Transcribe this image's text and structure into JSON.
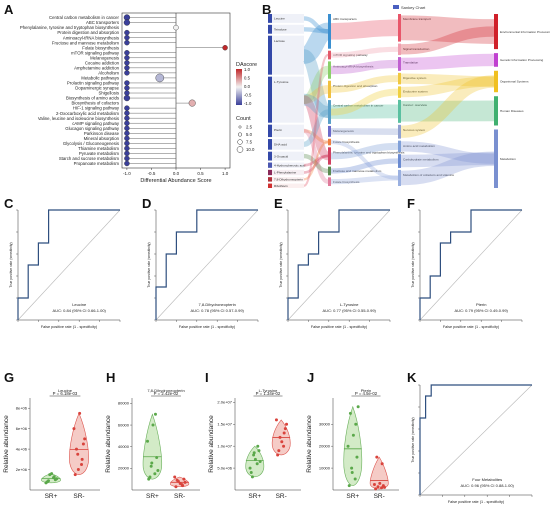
{
  "panels": {
    "letters": [
      "A",
      "B",
      "C",
      "D",
      "E",
      "F",
      "G",
      "H",
      "I",
      "J",
      "K"
    ]
  },
  "panel_A": {
    "pathways": [
      "Central carbon metabolism in cancer",
      "ABC transporters",
      "Phenylalanine, tyrosine and tryptophan biosynthesis",
      "Protein digestion and absorption",
      "Aminoacyl-tRNA biosynthesis",
      "Fructose and mannose metabolism",
      "Folate biosynthesis",
      "mTOR signaling pathway",
      "Melanogenesis",
      "Cocaine addiction",
      "Amphetamine addiction",
      "Alcoholism",
      "Metabolic pathways",
      "Prolactin signaling pathway",
      "Dopaminergic synapse",
      "Shigellosis",
      "Biosynthesis of amino acids",
      "Biosynthesis of cofactors",
      "HIF-1 signaling pathway",
      "2-Oxocarboxylic acid metabolism",
      "Valine, leucine and isoleucine biosynthesis",
      "cAMP signaling pathway",
      "Glucagon signaling pathway",
      "Parkinson disease",
      "Mineral absorption",
      "Glycolysis / Gluconeogenesis",
      "Thiamine metabolism",
      "Pyruvate metabolism",
      "Starch and sucrose metabolism",
      "Propanoate metabolism"
    ],
    "x_ticks": [
      "-1.0",
      "-0.5",
      "0.0",
      "0.5",
      "1.0"
    ],
    "xlabel": "Differential Abundance Score",
    "legend_da_title": "DAscore",
    "legend_da_ticks": [
      "1.0",
      "0.5",
      "0.0",
      "-0.5",
      "-1.0"
    ],
    "legend_count_title": "Count",
    "legend_count_labels": [
      "2.5",
      "5.0",
      "7.5",
      "10.0"
    ]
  },
  "chart_data": [
    {
      "type": "scatter",
      "panel": "A",
      "xlabel": "Differential Abundance Score",
      "xlim": [
        -1.1,
        1.1
      ],
      "categories": [
        "Central carbon metabolism in cancer",
        "ABC transporters",
        "Phenylalanine, tyrosine and tryptophan biosynthesis",
        "Protein digestion and absorption",
        "Aminoacyl-tRNA biosynthesis",
        "Fructose and mannose metabolism",
        "Folate biosynthesis",
        "mTOR signaling pathway",
        "Melanogenesis",
        "Cocaine addiction",
        "Amphetamine addiction",
        "Alcoholism",
        "Metabolic pathways",
        "Prolactin signaling pathway",
        "Dopaminergic synapse",
        "Shigellosis",
        "Biosynthesis of amino acids",
        "Biosynthesis of cofactors",
        "HIF-1 signaling pathway",
        "2-Oxocarboxylic acid metabolism",
        "Valine, leucine and isoleucine biosynthesis",
        "cAMP signaling pathway",
        "Glucagon signaling pathway",
        "Parkinson disease",
        "Mineral absorption",
        "Glycolysis / Gluconeogenesis",
        "Thiamine metabolism",
        "Pyruvate metabolism",
        "Starch and sucrose metabolism",
        "Propanoate metabolism"
      ],
      "values": [
        -1,
        -1,
        0,
        -1,
        -1,
        -1,
        1,
        -1,
        -1,
        -1,
        -1,
        -1,
        -0.33,
        -1,
        -1,
        -1,
        -1,
        0.33,
        -1,
        -1,
        -1,
        -1,
        -1,
        -1,
        -1,
        -1,
        -1,
        -1,
        -1,
        -1
      ],
      "counts": [
        2,
        2,
        1,
        1,
        1,
        1,
        1,
        1,
        1,
        1,
        1,
        1,
        6,
        1,
        1,
        1,
        2,
        3,
        1,
        1,
        1,
        1,
        1,
        1,
        1,
        1,
        1,
        1,
        1,
        1
      ]
    },
    {
      "type": "line",
      "panel": "C",
      "xlabel": "False positive rate (1 - specificity)",
      "ylabel": "True positive rate (sensitivity)",
      "annotation": [
        "Leucine",
        "AUC: 0.84 (95% CI 0.66-1.00)"
      ],
      "x": [
        0,
        0,
        0.1,
        0.1,
        0.2,
        0.2,
        0.3,
        0.3,
        1
      ],
      "y": [
        0,
        0.2,
        0.2,
        0.5,
        0.5,
        0.7,
        0.7,
        1,
        1
      ]
    },
    {
      "type": "line",
      "panel": "D",
      "xlabel": "False positive rate (1 - specificity)",
      "ylabel": "True positive rate (sensitivity)",
      "annotation": [
        "7,8-Dihydroneopterin",
        "AUC: 0.78 (95% CI 0.57-0.99)"
      ],
      "x": [
        0,
        0,
        0.1,
        0.1,
        0.2,
        0.2,
        0.4,
        0.4,
        1
      ],
      "y": [
        0,
        0.3,
        0.3,
        0.6,
        0.6,
        0.8,
        0.8,
        1,
        1
      ]
    },
    {
      "type": "line",
      "panel": "E",
      "xlabel": "False positive rate (1 - specificity)",
      "ylabel": "True positive rate (sensitivity)",
      "annotation": [
        "L-Tyrosine",
        "AUC: 0.77 (95% CI 0.55-0.99)"
      ],
      "x": [
        0,
        0,
        0.1,
        0.1,
        0.2,
        0.2,
        0.3,
        0.3,
        0.5,
        0.5,
        1
      ],
      "y": [
        0,
        0.2,
        0.2,
        0.5,
        0.5,
        0.6,
        0.6,
        0.8,
        0.8,
        1,
        1
      ]
    },
    {
      "type": "line",
      "panel": "F",
      "xlabel": "False positive rate (1 - specificity)",
      "ylabel": "True positive rate (sensitivity)",
      "annotation": [
        "Pterin",
        "AUC: 0.79 (95% CI 0.49-0.99)"
      ],
      "x": [
        0,
        0,
        0.1,
        0.1,
        0.2,
        0.2,
        0.3,
        0.3,
        0.5,
        0.5,
        1
      ],
      "y": [
        0,
        0.2,
        0.2,
        0.4,
        0.4,
        0.7,
        0.7,
        0.8,
        0.8,
        1,
        1
      ]
    },
    {
      "type": "line",
      "panel": "K",
      "xlabel": "False positive rate (1 - specificity)",
      "ylabel": "True positive rate (sensitivity)",
      "annotation": [
        "Four Metabolites",
        "AUC: 0.96 (95% CI 0.88-1.00)"
      ],
      "x": [
        0,
        0,
        0.05,
        0.05,
        0.1,
        0.1,
        1
      ],
      "y": [
        0,
        0.7,
        0.7,
        0.9,
        0.9,
        1,
        1
      ]
    },
    {
      "type": "scatter",
      "panel": "G",
      "title": "Leucine",
      "ylabel": "Relative abundance",
      "categories": [
        "SR+",
        "SR-"
      ],
      "pvalue": "P = 6.18e-03",
      "yticks": [
        "2e+06",
        "4e+06",
        "6e+06",
        "8e+06"
      ],
      "ylim": [
        0,
        9000000
      ],
      "series": [
        {
          "name": "SR+",
          "values": [
            800000,
            1200000,
            1500000,
            1000000,
            700000,
            1600000,
            1300000,
            900000,
            1100000
          ]
        },
        {
          "name": "SR-",
          "values": [
            1500000,
            2500000,
            3500000,
            4500000,
            6000000,
            7500000,
            3000000,
            4000000,
            5000000,
            2000000
          ]
        }
      ]
    },
    {
      "type": "scatter",
      "panel": "H",
      "title": "7,8-Dihydroneopterin",
      "ylabel": "Relative abundance",
      "categories": [
        "SR+",
        "SR-"
      ],
      "pvalue": "P = 2.42e-02",
      "yticks": [
        "20000",
        "40000",
        "60000",
        "80000"
      ],
      "ylim": [
        0,
        85000
      ],
      "series": [
        {
          "name": "SR+",
          "values": [
            10000,
            15000,
            22000,
            30000,
            45000,
            60000,
            70000,
            12000,
            18000,
            25000
          ]
        },
        {
          "name": "SR-",
          "values": [
            3000,
            5000,
            8000,
            10000,
            12000,
            6000,
            4000,
            9000,
            7000
          ]
        }
      ]
    },
    {
      "type": "scatter",
      "panel": "I",
      "title": "L-Tyrosine",
      "ylabel": "Relative abundance",
      "categories": [
        "SR+",
        "SR-"
      ],
      "pvalue": "P = 1.34e-02",
      "yticks": [
        "5.0e+06",
        "1.0e+07",
        "1.5e+07",
        "2.0e+07"
      ],
      "ylim": [
        0,
        21000000
      ],
      "series": [
        {
          "name": "SR+",
          "values": [
            4000000,
            6000000,
            8000000,
            9000000,
            5000000,
            7000000,
            10000000,
            3000000,
            6500000,
            8500000
          ]
        },
        {
          "name": "SR-",
          "values": [
            8000000,
            10000000,
            12000000,
            14000000,
            16000000,
            11000000,
            13000000,
            9000000,
            15000000
          ]
        }
      ]
    },
    {
      "type": "scatter",
      "panel": "J",
      "title": "Pterin",
      "ylabel": "Relative abundance",
      "categories": [
        "SR+",
        "SR-"
      ],
      "pvalue": "P = 4.5e-02",
      "yticks": [
        "10000",
        "20000",
        "30000"
      ],
      "ylim": [
        0,
        42000
      ],
      "series": [
        {
          "name": "SR+",
          "values": [
            2000,
            5000,
            10000,
            15000,
            20000,
            25000,
            30000,
            35000,
            38000,
            8000
          ]
        },
        {
          "name": "SR-",
          "values": [
            500,
            1000,
            1500,
            2000,
            2500,
            3000,
            12000,
            15000,
            1200
          ]
        }
      ]
    }
  ],
  "panel_B": {
    "legend": "Sankey Chart",
    "left": [
      "Leucine",
      "Tetralose",
      "Lactose",
      "L-Tyrosine",
      "Pterin",
      "DHA acid",
      "3-Oxoacid",
      "4-Hydroxybenzoic acid",
      "L-Phenylalanine",
      "7,8-Dihydroneopterin",
      "Riboflavin"
    ],
    "middle": [
      "ABC transporters",
      "mTOR signaling pathway",
      "Aminoacyl-tRNA biosynthesis",
      "Protein digestion and absorption",
      "Central carbon metabolism in cancer",
      "Melanogenesis",
      "Folate biosynthesis",
      "Phenylalanine, tyrosine and tryptophan biosynthesis",
      "Fructose and mannose metabolism",
      "Folate biosynthesis"
    ],
    "third": [
      "Membrane transport",
      "Signal transduction",
      "Translation",
      "Digestive system",
      "Endocrine system",
      "Cancer: overview",
      "Nervous system",
      "Amino acid metabolism",
      "Carbohydrate metabolism",
      "Metabolism of cofactors and vitamins"
    ],
    "right": [
      "Environmental Information Processing",
      "Genetic Information Processing",
      "Organismal Systems",
      "Human Diseases",
      "Metabolism"
    ]
  },
  "colors": {
    "da_high": "#c0282a",
    "da_low": "#3a3f9a",
    "roc": "#2f4f7f",
    "diag": "#b8b8b8",
    "sr_plus_fill": "#cfe9c2",
    "sr_plus_edge": "#5aa84a",
    "sr_minus_fill": "#f4c6c0",
    "sr_minus_edge": "#d9433c"
  }
}
